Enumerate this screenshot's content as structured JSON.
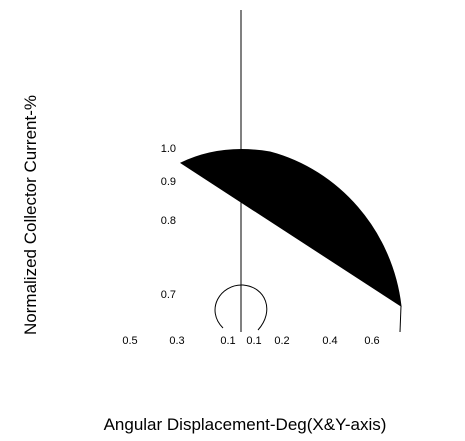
{
  "chart_data": {
    "type": "line",
    "title": "",
    "xlabel": "Angular Displacement-Deg(X&Y-axis)",
    "ylabel": "Normalized Collector Current-%",
    "x_tick_labels": [
      "0.5",
      "0.3",
      "0.1",
      "0.1",
      "0.2",
      "0.4",
      "0.6"
    ],
    "x_tick_values": [
      -0.5,
      -0.3,
      -0.1,
      0.1,
      0.2,
      0.4,
      0.6
    ],
    "y_tick_labels": [
      "1.0",
      "0.9",
      "0.8",
      "0.7"
    ],
    "y_tick_values": [
      1.0,
      0.9,
      0.8,
      0.7
    ],
    "grid": false,
    "colors": {
      "fill": "#000000",
      "line": "#000000"
    },
    "series": [
      {
        "shape": "filled-half-lobe",
        "chord_start": {
          "x": -0.27,
          "y": 0.955
        },
        "chord_end": {
          "x": 0.68,
          "y": 0.695
        },
        "arc_top_y": 1.0
      }
    ]
  }
}
